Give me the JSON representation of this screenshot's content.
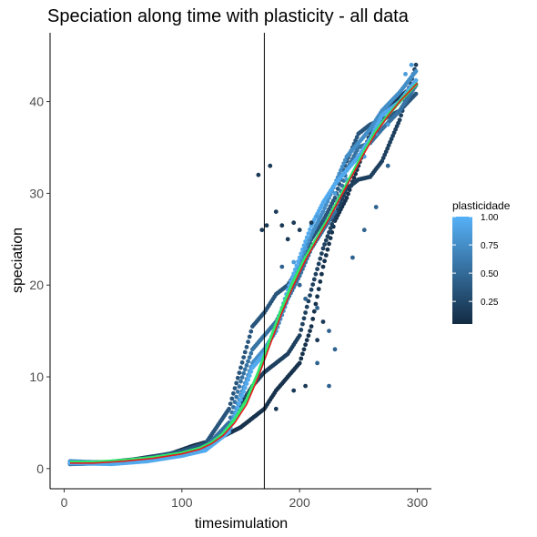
{
  "chart_data": {
    "type": "scatter",
    "title": "Speciation along time with plasticity - all data",
    "xlabel": "timesimulation",
    "ylabel": "speciation",
    "xlim": [
      -12,
      312
    ],
    "ylim": [
      -2.2,
      47.5
    ],
    "x_ticks": [
      0,
      100,
      200,
      300
    ],
    "y_ticks": [
      0,
      10,
      20,
      30,
      40
    ],
    "grid": false,
    "vline_x": 170,
    "legend": {
      "title": "plasticidade",
      "position": "right",
      "ticks": [
        0.25,
        0.5,
        0.75,
        1.0
      ],
      "tick_labels": [
        "0.25",
        "0.50",
        "0.75",
        "1.00"
      ],
      "range": [
        0.05,
        1.0
      ],
      "colors": {
        "low": "#132B43",
        "high": "#56B1F7"
      }
    },
    "series": [
      {
        "plasticity": 0.1,
        "points": [
          [
            5,
            0.5
          ],
          [
            30,
            0.6
          ],
          [
            60,
            1.0
          ],
          [
            90,
            1.6
          ],
          [
            110,
            2.5
          ],
          [
            130,
            3.2
          ],
          [
            150,
            4.5
          ],
          [
            160,
            5.5
          ],
          [
            170,
            6.5
          ],
          [
            180,
            8.5
          ],
          [
            190,
            10.0
          ],
          [
            200,
            11.5
          ],
          [
            210,
            15.5
          ],
          [
            220,
            22.0
          ],
          [
            230,
            27.0
          ],
          [
            240,
            29.5
          ],
          [
            250,
            33.0
          ],
          [
            260,
            36.5
          ],
          [
            270,
            38.5
          ],
          [
            285,
            40.5
          ],
          [
            300,
            42.0
          ]
        ]
      },
      {
        "plasticity": 0.2,
        "points": [
          [
            5,
            0.6
          ],
          [
            40,
            0.6
          ],
          [
            70,
            1.2
          ],
          [
            100,
            1.8
          ],
          [
            120,
            2.6
          ],
          [
            140,
            4.5
          ],
          [
            150,
            7.0
          ],
          [
            160,
            9.0
          ],
          [
            170,
            10.5
          ],
          [
            180,
            11.5
          ],
          [
            190,
            12.5
          ],
          [
            200,
            14.5
          ],
          [
            210,
            19.5
          ],
          [
            220,
            24.0
          ],
          [
            230,
            27.5
          ],
          [
            240,
            30.5
          ],
          [
            250,
            31.5
          ],
          [
            260,
            31.8
          ],
          [
            270,
            33.5
          ],
          [
            285,
            38.0
          ],
          [
            300,
            44.5
          ]
        ]
      },
      {
        "plasticity": 0.35,
        "points": [
          [
            5,
            0.7
          ],
          [
            40,
            0.7
          ],
          [
            70,
            1.1
          ],
          [
            100,
            1.9
          ],
          [
            120,
            2.7
          ],
          [
            140,
            6.5
          ],
          [
            150,
            11.0
          ],
          [
            160,
            15.5
          ],
          [
            170,
            17.0
          ],
          [
            180,
            19.0
          ],
          [
            190,
            20.0
          ],
          [
            200,
            22.0
          ],
          [
            210,
            25.0
          ],
          [
            220,
            27.0
          ],
          [
            230,
            29.5
          ],
          [
            240,
            33.5
          ],
          [
            250,
            36.5
          ],
          [
            260,
            37.5
          ],
          [
            270,
            38.0
          ],
          [
            285,
            39.0
          ],
          [
            300,
            41.0
          ]
        ]
      },
      {
        "plasticity": 0.55,
        "points": [
          [
            5,
            0.5
          ],
          [
            40,
            0.6
          ],
          [
            70,
            1.0
          ],
          [
            100,
            1.6
          ],
          [
            120,
            2.3
          ],
          [
            140,
            5.0
          ],
          [
            150,
            9.5
          ],
          [
            160,
            13.0
          ],
          [
            170,
            14.5
          ],
          [
            180,
            16.0
          ],
          [
            190,
            18.5
          ],
          [
            200,
            21.0
          ],
          [
            210,
            24.0
          ],
          [
            220,
            26.0
          ],
          [
            230,
            28.0
          ],
          [
            240,
            32.5
          ],
          [
            250,
            35.0
          ],
          [
            260,
            35.5
          ],
          [
            270,
            37.0
          ],
          [
            285,
            39.0
          ],
          [
            300,
            42.0
          ]
        ]
      },
      {
        "plasticity": 0.75,
        "points": [
          [
            5,
            0.8
          ],
          [
            40,
            0.6
          ],
          [
            70,
            0.9
          ],
          [
            100,
            1.5
          ],
          [
            120,
            2.0
          ],
          [
            140,
            4.2
          ],
          [
            150,
            8.0
          ],
          [
            160,
            11.5
          ],
          [
            170,
            13.0
          ],
          [
            180,
            15.0
          ],
          [
            190,
            18.5
          ],
          [
            200,
            22.5
          ],
          [
            210,
            25.5
          ],
          [
            220,
            28.0
          ],
          [
            230,
            31.0
          ],
          [
            240,
            34.0
          ],
          [
            250,
            35.5
          ],
          [
            260,
            37.0
          ],
          [
            270,
            39.0
          ],
          [
            285,
            41.0
          ],
          [
            300,
            43.5
          ]
        ]
      },
      {
        "plasticity": 0.95,
        "points": [
          [
            5,
            0.6
          ],
          [
            40,
            0.5
          ],
          [
            70,
            0.8
          ],
          [
            100,
            1.4
          ],
          [
            120,
            2.0
          ],
          [
            140,
            4.0
          ],
          [
            150,
            7.5
          ],
          [
            160,
            11.0
          ],
          [
            170,
            12.5
          ],
          [
            180,
            15.5
          ],
          [
            190,
            19.5
          ],
          [
            200,
            23.0
          ],
          [
            210,
            26.5
          ],
          [
            220,
            29.0
          ],
          [
            230,
            31.0
          ],
          [
            240,
            32.5
          ],
          [
            250,
            34.0
          ],
          [
            260,
            36.0
          ],
          [
            270,
            38.5
          ],
          [
            285,
            40.0
          ],
          [
            300,
            42.5
          ]
        ]
      }
    ],
    "outliers": [
      {
        "plasticity": 0.15,
        "points": [
          [
            165,
            32.0
          ],
          [
            168,
            26.0
          ],
          [
            172,
            26.5
          ],
          [
            175,
            33.0
          ],
          [
            180,
            28.0
          ],
          [
            185,
            26.5
          ],
          [
            190,
            25.0
          ],
          [
            195,
            26.8
          ],
          [
            200,
            26.0
          ],
          [
            210,
            26.8
          ],
          [
            215,
            14.0
          ],
          [
            220,
            16.0
          ],
          [
            195,
            8.5
          ],
          [
            205,
            9.0
          ],
          [
            180,
            6.5
          ]
        ]
      },
      {
        "plasticity": 0.45,
        "points": [
          [
            185,
            22.0
          ],
          [
            200,
            20.0
          ],
          [
            205,
            18.5
          ],
          [
            215,
            17.5
          ],
          [
            225,
            15.0
          ],
          [
            230,
            13.0
          ],
          [
            245,
            23.0
          ],
          [
            255,
            26.0
          ],
          [
            265,
            28.5
          ],
          [
            275,
            33.0
          ],
          [
            215,
            11.5
          ],
          [
            225,
            9.0
          ]
        ]
      },
      {
        "plasticity": 0.85,
        "points": [
          [
            195,
            22.5
          ],
          [
            205,
            24.0
          ],
          [
            215,
            27.5
          ],
          [
            230,
            30.0
          ],
          [
            240,
            31.5
          ],
          [
            255,
            34.0
          ],
          [
            265,
            36.5
          ],
          [
            275,
            37.5
          ],
          [
            290,
            43.0
          ],
          [
            295,
            44.0
          ]
        ]
      }
    ],
    "smooth": {
      "green": [
        [
          5,
          0.7
        ],
        [
          25,
          0.7
        ],
        [
          50,
          0.9
        ],
        [
          75,
          1.2
        ],
        [
          100,
          1.7
        ],
        [
          115,
          2.2
        ],
        [
          125,
          2.8
        ],
        [
          135,
          3.8
        ],
        [
          145,
          5.4
        ],
        [
          155,
          7.5
        ],
        [
          165,
          10.5
        ],
        [
          175,
          14.0
        ],
        [
          185,
          17.5
        ],
        [
          195,
          20.5
        ],
        [
          205,
          23.0
        ],
        [
          215,
          25.2
        ],
        [
          225,
          27.4
        ],
        [
          235,
          29.8
        ],
        [
          245,
          32.2
        ],
        [
          255,
          34.6
        ],
        [
          265,
          36.8
        ],
        [
          275,
          38.5
        ],
        [
          285,
          40.0
        ],
        [
          300,
          42.0
        ]
      ],
      "red": [
        [
          5,
          0.6
        ],
        [
          25,
          0.6
        ],
        [
          50,
          0.8
        ],
        [
          75,
          1.1
        ],
        [
          100,
          1.6
        ],
        [
          115,
          2.1
        ],
        [
          125,
          2.7
        ],
        [
          135,
          3.6
        ],
        [
          145,
          5.0
        ],
        [
          155,
          7.0
        ],
        [
          165,
          10.0
        ],
        [
          175,
          13.5
        ],
        [
          185,
          17.0
        ],
        [
          195,
          20.0
        ],
        [
          205,
          22.7
        ],
        [
          215,
          25.0
        ],
        [
          225,
          27.2
        ],
        [
          235,
          29.6
        ],
        [
          245,
          32.0
        ],
        [
          255,
          34.4
        ],
        [
          265,
          36.6
        ],
        [
          275,
          38.4
        ],
        [
          285,
          40.0
        ],
        [
          300,
          42.0
        ]
      ]
    }
  }
}
